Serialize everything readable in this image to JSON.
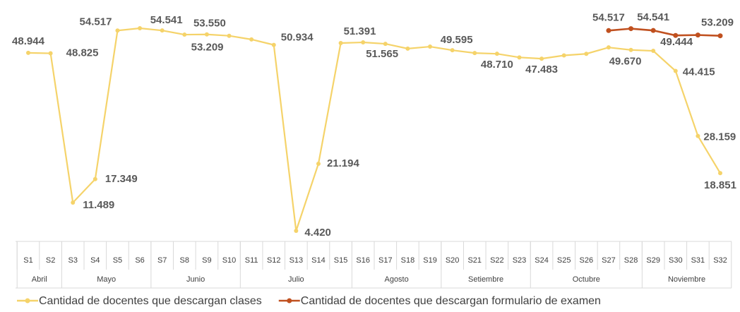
{
  "chart_data": {
    "type": "line",
    "categories": [
      "S1",
      "S2",
      "S3",
      "S4",
      "S5",
      "S6",
      "S7",
      "S8",
      "S9",
      "S10",
      "S11",
      "S12",
      "S13",
      "S14",
      "S15",
      "S16",
      "S17",
      "S18",
      "S19",
      "S20",
      "S21",
      "S22",
      "S23",
      "S24",
      "S25",
      "S26",
      "S27",
      "S28",
      "S29",
      "S30",
      "S31",
      "S32"
    ],
    "groups": [
      {
        "label": "Abril",
        "span": 2
      },
      {
        "label": "Mayo",
        "span": 4
      },
      {
        "label": "Junio",
        "span": 4
      },
      {
        "label": "Julio",
        "span": 5
      },
      {
        "label": "Agosto",
        "span": 4
      },
      {
        "label": "Setiembre",
        "span": 4
      },
      {
        "label": "Octubre",
        "span": 5
      },
      {
        "label": "Noviembre",
        "span": 4
      }
    ],
    "series": [
      {
        "name": "Cantidad de docentes que descargan clases",
        "color": "#f5d36a",
        "values": [
          48944,
          48825,
          11489,
          17349,
          54517,
          55100,
          54541,
          53500,
          53550,
          53209,
          52300,
          50934,
          4420,
          21194,
          51391,
          51565,
          51200,
          50000,
          50500,
          49595,
          48900,
          48710,
          47800,
          47483,
          48300,
          48700,
          50300,
          49670,
          49444,
          44415,
          28159,
          18851
        ],
        "value_labels": [
          "48.944",
          "48.825",
          "11.489",
          "17.349",
          "54.517",
          null,
          "54.541",
          null,
          "53.550",
          "53.209",
          null,
          "50.934",
          "4.420",
          "21.194",
          "51.391",
          "51.565",
          null,
          null,
          null,
          "49.595",
          null,
          "48.710",
          null,
          "47.483",
          null,
          null,
          null,
          "49.670",
          "49.444",
          "44.415",
          "28.159",
          "18.851"
        ]
      },
      {
        "name": "Cantidad de docentes que descargan formulario de examen",
        "color": "#c0501f",
        "values": [
          null,
          null,
          null,
          null,
          null,
          null,
          null,
          null,
          null,
          null,
          null,
          null,
          null,
          null,
          null,
          null,
          null,
          null,
          null,
          null,
          null,
          null,
          null,
          null,
          null,
          null,
          54517,
          55000,
          54541,
          53300,
          53400,
          53209
        ],
        "value_labels": [
          null,
          null,
          null,
          null,
          null,
          null,
          null,
          null,
          null,
          null,
          null,
          null,
          null,
          null,
          null,
          null,
          null,
          null,
          null,
          null,
          null,
          null,
          null,
          null,
          null,
          null,
          "54.517",
          null,
          "54.541",
          null,
          null,
          "53.209"
        ]
      }
    ]
  }
}
